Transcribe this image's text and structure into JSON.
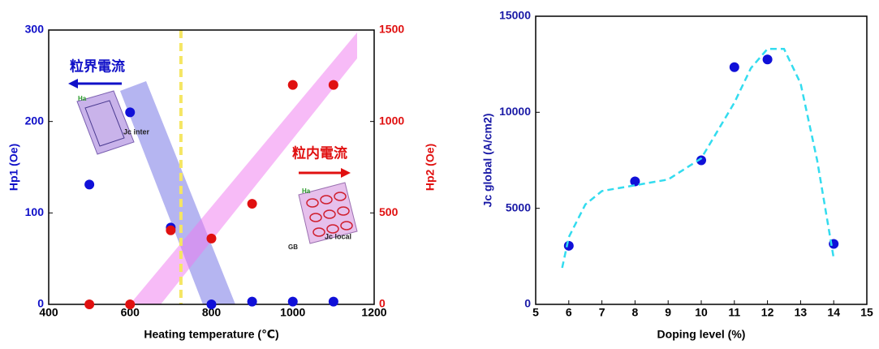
{
  "chart_data": [
    {
      "type": "scatter",
      "xlabel": "Heating temperature (℃)",
      "ylabel": "Hp1 (Oe)",
      "y2label": "Hp2 (Oe)",
      "xlim": [
        400,
        1200
      ],
      "xticks": [
        400,
        600,
        800,
        1000,
        1200
      ],
      "ylim": [
        0,
        300
      ],
      "yticks": [
        0,
        100,
        200,
        300
      ],
      "y2lim": [
        0,
        1500
      ],
      "y2ticks": [
        0,
        500,
        1000,
        1500
      ],
      "y_color": "#1010c8",
      "y2_color": "#e01010",
      "vline": 725,
      "vline_color": "#f5e663",
      "annotations": [
        "粒界電流",
        "粒内電流",
        "Jc inter",
        "Jc local",
        "GB",
        "Ha",
        "Ha"
      ],
      "series": [
        {
          "color": "#1010d8",
          "x": [
            500,
            600,
            700,
            800,
            900,
            1000,
            1100
          ],
          "values": [
            131,
            210,
            84,
            0,
            3,
            3,
            3
          ]
        },
        {
          "color": "#e01010",
          "axis": "y2",
          "x": [
            500,
            600,
            700,
            800,
            900,
            1000,
            1100
          ],
          "values": [
            0,
            0,
            405,
            360,
            550,
            1200,
            1200
          ]
        }
      ]
    },
    {
      "type": "scatter",
      "xlabel": "Doping level (%)",
      "ylabel": "Jc global (A/cm2)",
      "xlim": [
        5,
        15
      ],
      "xticks": [
        5,
        6,
        7,
        8,
        9,
        10,
        11,
        12,
        13,
        14,
        15
      ],
      "ylim": [
        0,
        15000
      ],
      "yticks": [
        0,
        5000,
        10000,
        15000
      ],
      "y_color": "#1a1aa6",
      "series": [
        {
          "color": "#1010d8",
          "x": [
            6,
            8,
            10,
            11,
            12,
            14
          ],
          "values": [
            3050,
            6400,
            7500,
            12350,
            12750,
            3150
          ]
        },
        {
          "type": "line",
          "dashed": true,
          "color": "#33dcef",
          "x": [
            5.8,
            6,
            6.5,
            7,
            8,
            9,
            10,
            11,
            11.5,
            12,
            12.5,
            13,
            13.5,
            14
          ],
          "values": [
            1900,
            3500,
            5200,
            5900,
            6200,
            6500,
            7600,
            10500,
            12300,
            13300,
            13300,
            11500,
            7500,
            2400
          ]
        }
      ]
    }
  ]
}
